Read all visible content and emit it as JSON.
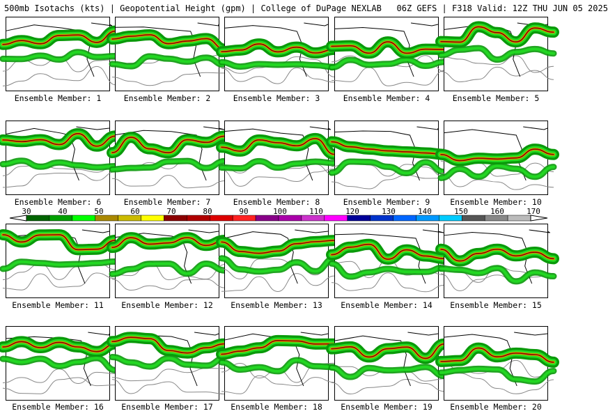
{
  "header": {
    "title": "500mb Isotachs (kts) | Geopotential Height (gpm) | College of DuPage NEXLAB   06Z GEFS | F318 Valid: 12Z THU JUN 05 2025"
  },
  "members": [
    {
      "label": "Ensemble Member: 1"
    },
    {
      "label": "Ensemble Member: 2"
    },
    {
      "label": "Ensemble Member: 3"
    },
    {
      "label": "Ensemble Member: 4"
    },
    {
      "label": "Ensemble Member: 5"
    },
    {
      "label": "Ensemble Member: 6"
    },
    {
      "label": "Ensemble Member: 7"
    },
    {
      "label": "Ensemble Member: 8"
    },
    {
      "label": "Ensemble Member: 9"
    },
    {
      "label": "Ensemble Member: 10"
    },
    {
      "label": "Ensemble Member: 11"
    },
    {
      "label": "Ensemble Member: 12"
    },
    {
      "label": "Ensemble Member: 13"
    },
    {
      "label": "Ensemble Member: 14"
    },
    {
      "label": "Ensemble Member: 15"
    },
    {
      "label": "Ensemble Member: 16"
    },
    {
      "label": "Ensemble Member: 17"
    },
    {
      "label": "Ensemble Member: 18"
    },
    {
      "label": "Ensemble Member: 19"
    },
    {
      "label": "Ensemble Member: 20"
    }
  ],
  "colorbar": {
    "labels": [
      "30",
      "40",
      "50",
      "60",
      "70",
      "80",
      "90",
      "100",
      "110",
      "120",
      "130",
      "140",
      "150",
      "160",
      "170"
    ],
    "colors": [
      "#006400",
      "#00a000",
      "#00ff00",
      "#aa8800",
      "#ccbb00",
      "#ffff00",
      "#8b0000",
      "#b00000",
      "#dd0000",
      "#ff2222",
      "#880088",
      "#aa00aa",
      "#cc33cc",
      "#ff00ff",
      "#000099",
      "#0033cc",
      "#0066ff",
      "#0099ff",
      "#00ccff",
      "#555555",
      "#888888",
      "#bbbbbb"
    ]
  },
  "jet_colors": {
    "outer": "#0a9a0a",
    "mid": "#22dd22",
    "core1": "#c9a400",
    "core2": "#8b0000",
    "contour": "#888888",
    "coast": "#000000"
  }
}
